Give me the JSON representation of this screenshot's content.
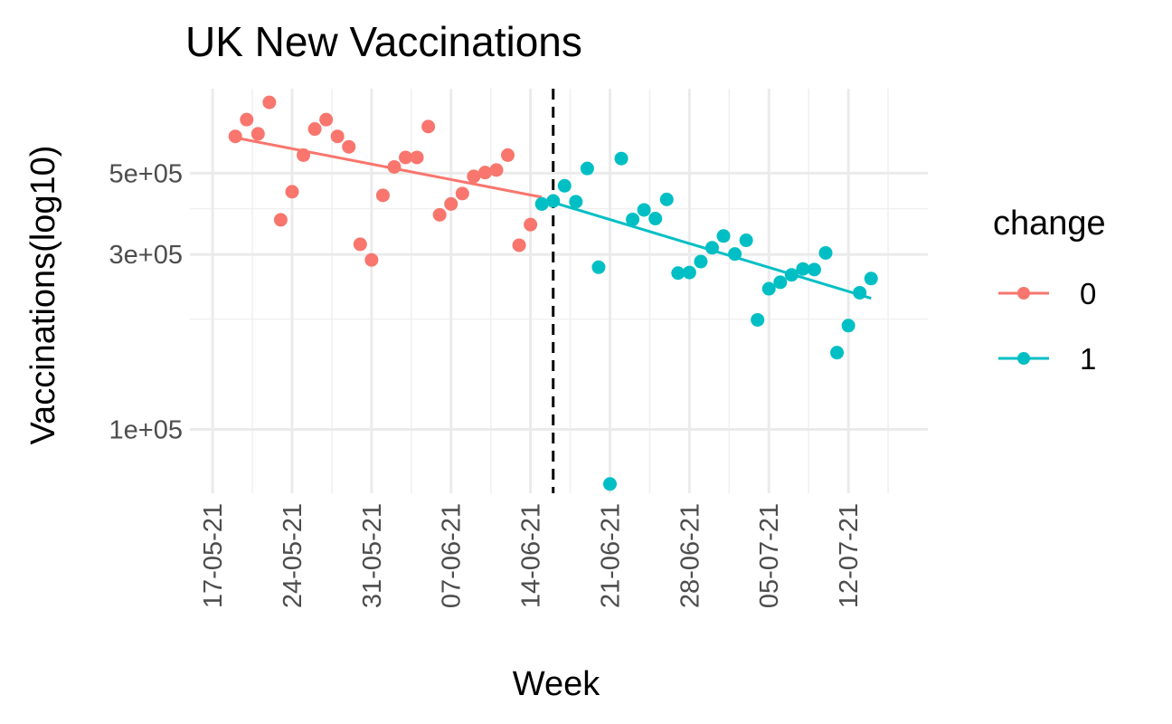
{
  "chart_data": {
    "type": "scatter",
    "title": "UK New Vaccinations",
    "xlabel": "Week",
    "ylabel": "Vaccinations(log10)",
    "y_scale": "log10",
    "ylim": [
      67000,
      850000
    ],
    "xlim": [
      "2021-05-15",
      "2021-07-19"
    ],
    "x_ticks": [
      {
        "date": "2021-05-17",
        "label": "17-05-21"
      },
      {
        "date": "2021-05-24",
        "label": "24-05-21"
      },
      {
        "date": "2021-05-31",
        "label": "31-05-21"
      },
      {
        "date": "2021-06-07",
        "label": "07-06-21"
      },
      {
        "date": "2021-06-14",
        "label": "14-06-21"
      },
      {
        "date": "2021-06-21",
        "label": "21-06-21"
      },
      {
        "date": "2021-06-28",
        "label": "28-06-21"
      },
      {
        "date": "2021-07-05",
        "label": "05-07-21"
      },
      {
        "date": "2021-07-12",
        "label": "12-07-21"
      }
    ],
    "y_ticks": [
      {
        "value": 100000,
        "label": "1e+05"
      },
      {
        "value": 300000,
        "label": "3e+05"
      },
      {
        "value": 500000,
        "label": "5e+05"
      }
    ],
    "y_minor_gridlines": [
      200000,
      400000
    ],
    "grid": true,
    "cutoff_date": "2021-06-16",
    "legend": {
      "title": "change",
      "position": "right",
      "entries": [
        {
          "label": "0",
          "color": "#F8766D"
        },
        {
          "label": "1",
          "color": "#00BFC4"
        }
      ]
    },
    "series": [
      {
        "name": "0",
        "color": "#F8766D",
        "points": [
          {
            "x": "2021-05-19",
            "y": 630000
          },
          {
            "x": "2021-05-20",
            "y": 700000
          },
          {
            "x": "2021-05-21",
            "y": 640000
          },
          {
            "x": "2021-05-22",
            "y": 780000
          },
          {
            "x": "2021-05-23",
            "y": 373000
          },
          {
            "x": "2021-05-24",
            "y": 445000
          },
          {
            "x": "2021-05-25",
            "y": 560000
          },
          {
            "x": "2021-05-26",
            "y": 660000
          },
          {
            "x": "2021-05-27",
            "y": 700000
          },
          {
            "x": "2021-05-28",
            "y": 630000
          },
          {
            "x": "2021-05-29",
            "y": 590000
          },
          {
            "x": "2021-05-30",
            "y": 320000
          },
          {
            "x": "2021-05-31",
            "y": 290000
          },
          {
            "x": "2021-06-01",
            "y": 435000
          },
          {
            "x": "2021-06-02",
            "y": 520000
          },
          {
            "x": "2021-06-03",
            "y": 552000
          },
          {
            "x": "2021-06-04",
            "y": 552000
          },
          {
            "x": "2021-06-05",
            "y": 670000
          },
          {
            "x": "2021-06-06",
            "y": 385000
          },
          {
            "x": "2021-06-07",
            "y": 412000
          },
          {
            "x": "2021-06-08",
            "y": 440000
          },
          {
            "x": "2021-06-09",
            "y": 490000
          },
          {
            "x": "2021-06-10",
            "y": 502000
          },
          {
            "x": "2021-06-11",
            "y": 510000
          },
          {
            "x": "2021-06-12",
            "y": 560000
          },
          {
            "x": "2021-06-13",
            "y": 318000
          },
          {
            "x": "2021-06-14",
            "y": 362000
          }
        ],
        "trend": [
          {
            "x": "2021-05-19",
            "y": 625000
          },
          {
            "x": "2021-06-15",
            "y": 430000
          }
        ]
      },
      {
        "name": "1",
        "color": "#00BFC4",
        "points": [
          {
            "x": "2021-06-15",
            "y": 412000
          },
          {
            "x": "2021-06-16",
            "y": 420000
          },
          {
            "x": "2021-06-17",
            "y": 462000
          },
          {
            "x": "2021-06-18",
            "y": 418000
          },
          {
            "x": "2021-06-19",
            "y": 515000
          },
          {
            "x": "2021-06-20",
            "y": 277000
          },
          {
            "x": "2021-06-21",
            "y": 71000
          },
          {
            "x": "2021-06-22",
            "y": 548000
          },
          {
            "x": "2021-06-23",
            "y": 374000
          },
          {
            "x": "2021-06-24",
            "y": 397000
          },
          {
            "x": "2021-06-25",
            "y": 376000
          },
          {
            "x": "2021-06-26",
            "y": 424000
          },
          {
            "x": "2021-06-27",
            "y": 267000
          },
          {
            "x": "2021-06-28",
            "y": 268000
          },
          {
            "x": "2021-06-29",
            "y": 287000
          },
          {
            "x": "2021-06-30",
            "y": 313000
          },
          {
            "x": "2021-07-01",
            "y": 337000
          },
          {
            "x": "2021-07-02",
            "y": 301000
          },
          {
            "x": "2021-07-03",
            "y": 328000
          },
          {
            "x": "2021-07-04",
            "y": 199000
          },
          {
            "x": "2021-07-05",
            "y": 242000
          },
          {
            "x": "2021-07-06",
            "y": 252000
          },
          {
            "x": "2021-07-07",
            "y": 264000
          },
          {
            "x": "2021-07-08",
            "y": 274000
          },
          {
            "x": "2021-07-09",
            "y": 273000
          },
          {
            "x": "2021-07-10",
            "y": 303000
          },
          {
            "x": "2021-07-11",
            "y": 162000
          },
          {
            "x": "2021-07-12",
            "y": 192000
          },
          {
            "x": "2021-07-13",
            "y": 236000
          },
          {
            "x": "2021-07-14",
            "y": 258000
          }
        ],
        "trend": [
          {
            "x": "2021-06-15",
            "y": 425000
          },
          {
            "x": "2021-07-14",
            "y": 228000
          }
        ]
      }
    ]
  }
}
